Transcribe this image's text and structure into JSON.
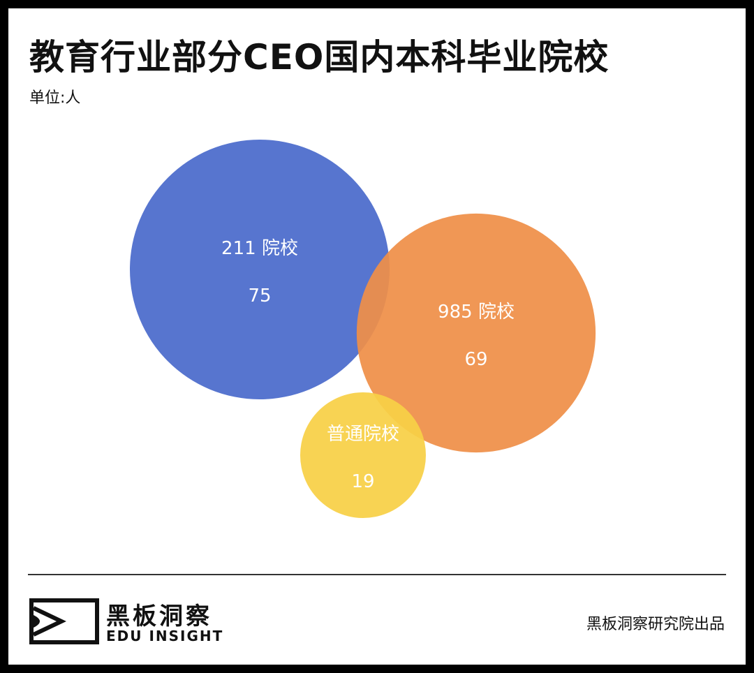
{
  "header": {
    "title": "教育行业部分CEO国内本科毕业院校",
    "unit": "单位:人"
  },
  "chart_data": {
    "type": "bubble",
    "series": [
      {
        "name": "211 院校",
        "value": 75,
        "color": "#4A6BCB"
      },
      {
        "name": "985 院校",
        "value": 69,
        "color": "#EF8F48"
      },
      {
        "name": "普通院校",
        "value": 19,
        "color": "#F7D046"
      }
    ]
  },
  "footer": {
    "brand_cn": "黑板洞察",
    "brand_en": "EDU INSIGHT",
    "credit": "黑板洞察研究院出品"
  }
}
